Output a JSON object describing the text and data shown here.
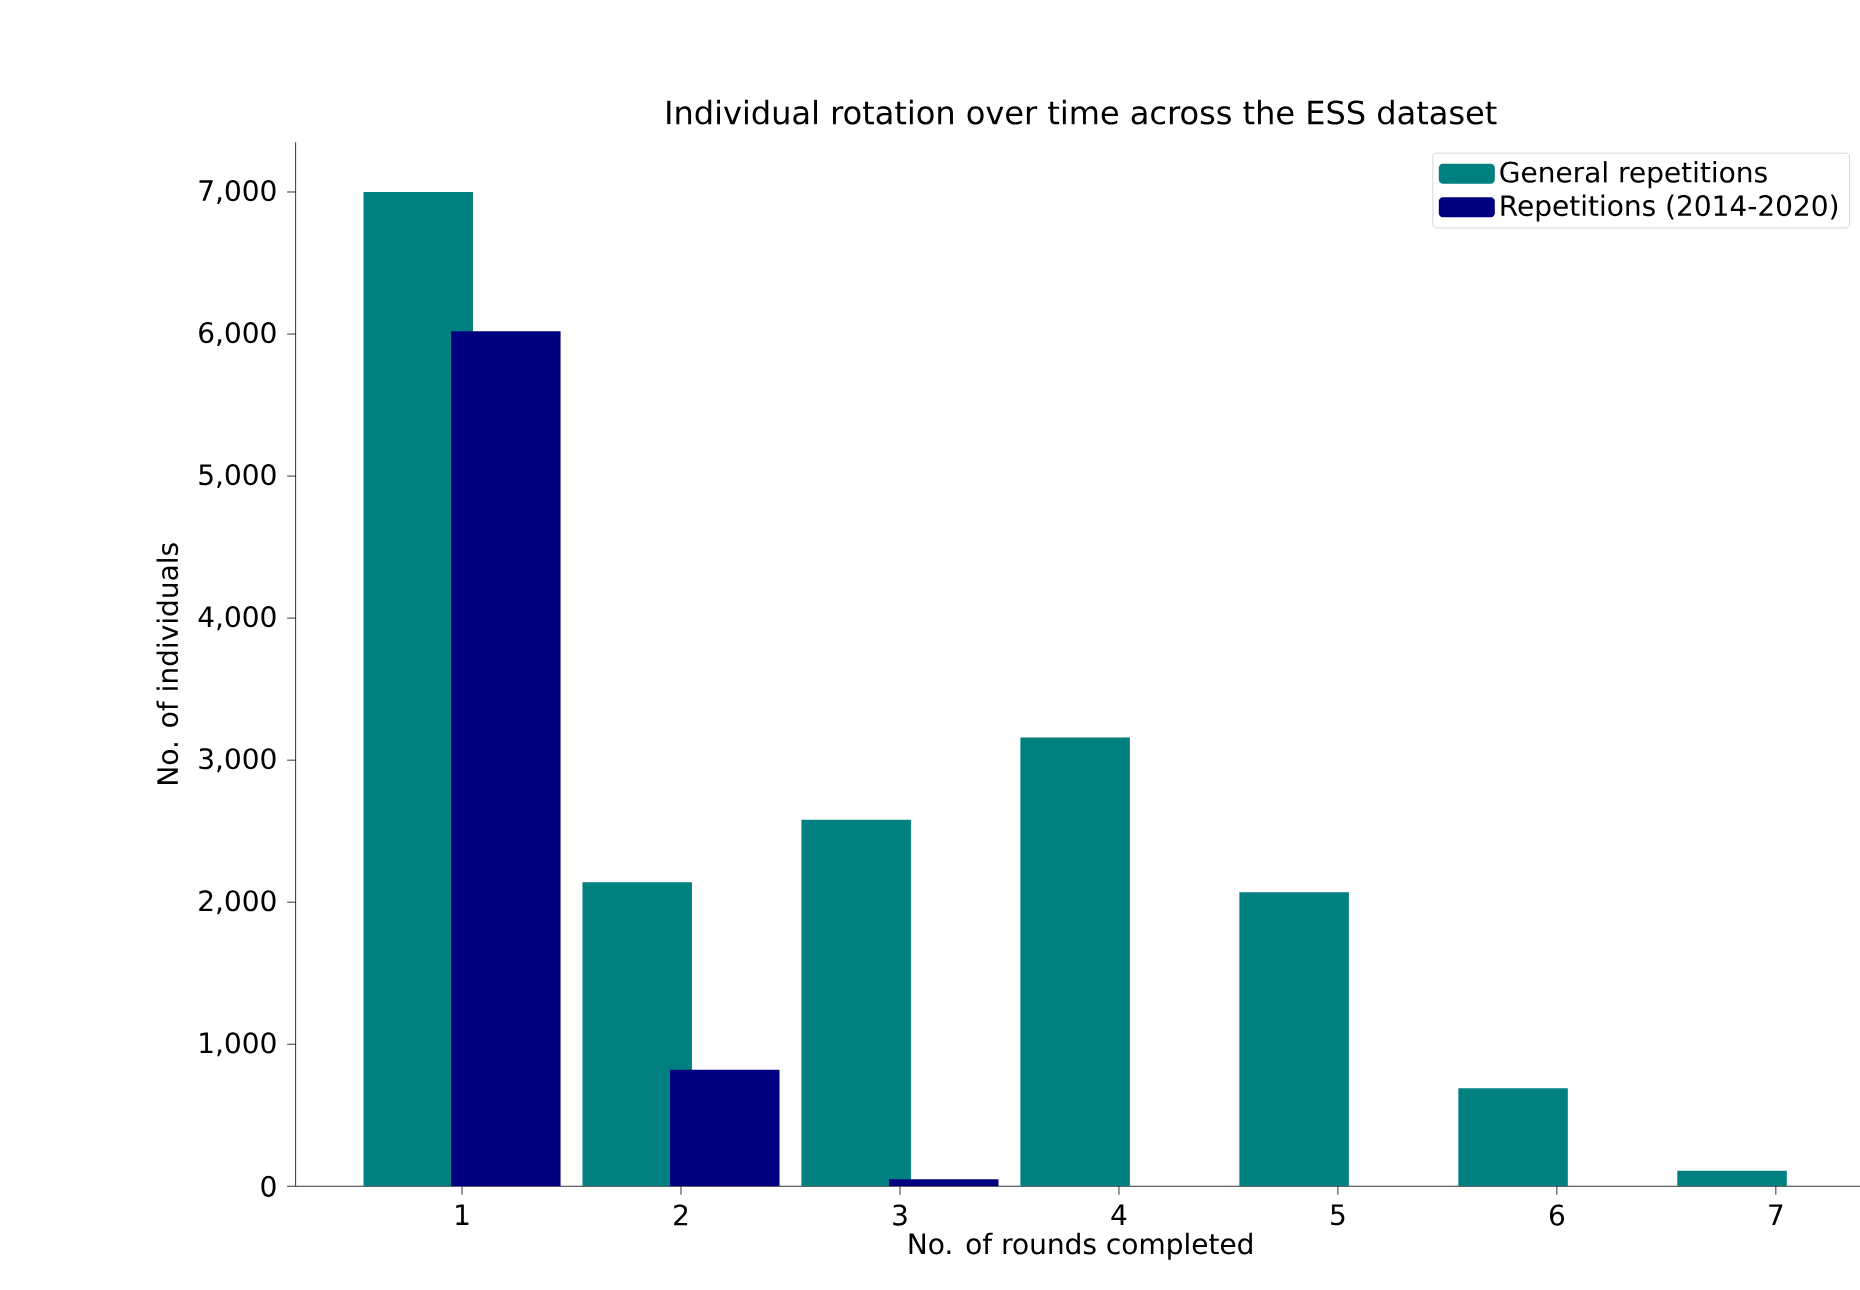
{
  "chart_data": {
    "type": "bar",
    "title": "Individual rotation over time across the ESS dataset",
    "xlabel": "No. of rounds completed",
    "ylabel": "No. of individuals",
    "categories": [
      "1",
      "2",
      "3",
      "4",
      "5",
      "6",
      "7"
    ],
    "series": [
      {
        "name": "General repetitions",
        "color": "#008080",
        "values": [
          7000,
          2140,
          2580,
          3160,
          2070,
          690,
          110
        ]
      },
      {
        "name": "Repetitions (2014-2020)",
        "color": "#000080",
        "values": [
          6020,
          820,
          50,
          null,
          null,
          null,
          null
        ]
      }
    ],
    "ylim": [
      0,
      7350
    ],
    "yticks": [
      {
        "value": 0,
        "label": "0"
      },
      {
        "value": 1000,
        "label": "1,000"
      },
      {
        "value": 2000,
        "label": "2,000"
      },
      {
        "value": 3000,
        "label": "3,000"
      },
      {
        "value": 4000,
        "label": "4,000"
      },
      {
        "value": 5000,
        "label": "5,000"
      },
      {
        "value": 6000,
        "label": "6,000"
      },
      {
        "value": 7000,
        "label": "7,000"
      }
    ],
    "legend": "top right"
  }
}
